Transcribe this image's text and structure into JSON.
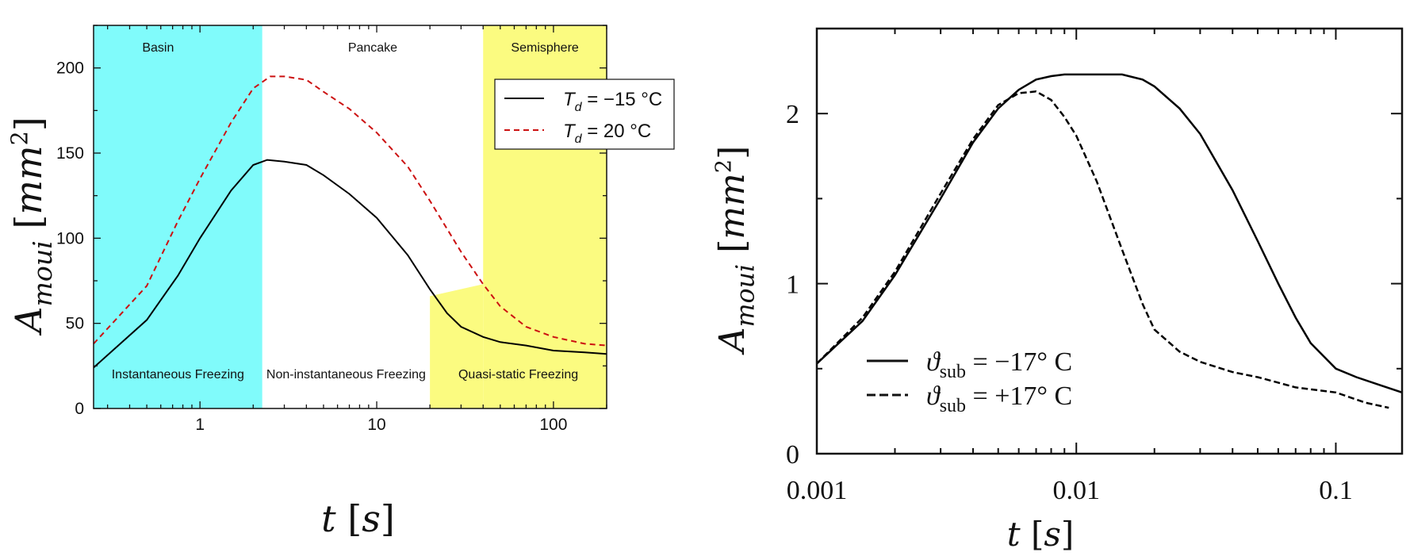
{
  "chart_data": [
    {
      "type": "line",
      "xscale": "log",
      "xlim": [
        0.25,
        200
      ],
      "ylim": [
        0,
        225
      ],
      "xlabel": "t [s]",
      "ylabel": "Amoui [mm2]",
      "xticks": [
        1,
        10,
        100
      ],
      "xtick_labels": [
        "1",
        "10",
        "100"
      ],
      "yticks": [
        0,
        50,
        100,
        150,
        200
      ],
      "ytick_labels": [
        "0",
        "50",
        "100",
        "150",
        "200"
      ],
      "grid": false,
      "legend_position": "top-right",
      "colors": {
        "cyan_region": "#80FBFB",
        "yellow_region": "#FBFB80",
        "dashed_series": "#CC1111",
        "solid_series": "#000000"
      },
      "regions_top": [
        {
          "label": "Basin",
          "x_from": 0.25,
          "x_to": 2.25,
          "color": "#80FBFB"
        },
        {
          "label": "Pancake",
          "x_from": 2.25,
          "x_to": 40,
          "color": "#FFFFFF"
        },
        {
          "label": "Semisphere",
          "x_from": 40,
          "x_to": 200,
          "color": "#FBFB80"
        }
      ],
      "regions_bottom": [
        {
          "label": "Instantaneous Freezing",
          "x_from": 0.25,
          "x_to": 2.25
        },
        {
          "label": "Non-instantaneous Freezing",
          "x_from": 2.25,
          "x_to": 20
        },
        {
          "label": "Quasi-static Freezing",
          "x_from": 20,
          "x_to": 200
        }
      ],
      "series": [
        {
          "legend_symbol": "T",
          "legend_subscript": "d",
          "legend_suffix": " = −15 °C",
          "style": "solid",
          "color": "#000000",
          "x": [
            0.25,
            0.5,
            0.75,
            1,
            1.5,
            2,
            2.4,
            3,
            4,
            5,
            7,
            10,
            15,
            20,
            25,
            30,
            40,
            50,
            70,
            100,
            150,
            200
          ],
          "y": [
            24,
            52,
            78,
            100,
            128,
            143,
            146,
            145,
            143,
            137,
            126,
            112,
            90,
            70,
            56,
            48,
            42,
            39,
            37,
            34,
            33,
            32
          ]
        },
        {
          "legend_symbol": "T",
          "legend_subscript": "d",
          "legend_suffix": " = 20 °C",
          "style": "dashed",
          "color": "#CC1111",
          "x": [
            0.25,
            0.5,
            0.75,
            1,
            1.5,
            2,
            2.5,
            3,
            4,
            5,
            7,
            10,
            15,
            20,
            30,
            40,
            50,
            70,
            100,
            150,
            200
          ],
          "y": [
            38,
            72,
            110,
            135,
            168,
            188,
            195,
            195,
            193,
            186,
            176,
            162,
            142,
            122,
            92,
            73,
            60,
            48,
            42,
            38,
            37
          ]
        }
      ]
    },
    {
      "type": "line",
      "xscale": "log",
      "xlim": [
        0.001,
        0.18
      ],
      "ylim": [
        0,
        2.5
      ],
      "xlabel": "t [s]",
      "ylabel": "Amoui [mm2]",
      "xticks": [
        0.001,
        0.01,
        0.1
      ],
      "xtick_labels": [
        "0.001",
        "0.01",
        "0.1"
      ],
      "yticks": [
        0,
        1,
        2
      ],
      "ytick_labels": [
        "0",
        "1",
        "2"
      ],
      "grid": false,
      "legend_position": "bottom-left",
      "series": [
        {
          "legend_symbol": "ϑ",
          "legend_subscript": "sub",
          "legend_suffix": " = −17° C",
          "style": "solid",
          "color": "#000000",
          "x": [
            0.001,
            0.0015,
            0.002,
            0.003,
            0.004,
            0.005,
            0.006,
            0.007,
            0.008,
            0.009,
            0.01,
            0.012,
            0.015,
            0.018,
            0.02,
            0.025,
            0.03,
            0.04,
            0.05,
            0.06,
            0.07,
            0.08,
            0.1,
            0.12,
            0.15,
            0.18
          ],
          "y": [
            0.53,
            0.78,
            1.05,
            1.5,
            1.83,
            2.03,
            2.14,
            2.2,
            2.22,
            2.23,
            2.23,
            2.23,
            2.23,
            2.2,
            2.16,
            2.03,
            1.88,
            1.55,
            1.25,
            1.0,
            0.8,
            0.65,
            0.5,
            0.45,
            0.4,
            0.36
          ]
        },
        {
          "legend_symbol": "ϑ",
          "legend_subscript": "sub",
          "legend_suffix": " = +17° C",
          "style": "dashed",
          "color": "#000000",
          "x": [
            0.001,
            0.0015,
            0.002,
            0.003,
            0.004,
            0.005,
            0.006,
            0.007,
            0.008,
            0.009,
            0.01,
            0.012,
            0.015,
            0.018,
            0.02,
            0.025,
            0.03,
            0.04,
            0.05,
            0.07,
            0.1,
            0.13,
            0.16
          ],
          "y": [
            0.53,
            0.8,
            1.07,
            1.53,
            1.85,
            2.05,
            2.12,
            2.13,
            2.08,
            1.98,
            1.87,
            1.6,
            1.2,
            0.88,
            0.73,
            0.6,
            0.54,
            0.48,
            0.45,
            0.39,
            0.36,
            0.3,
            0.27
          ]
        }
      ]
    }
  ]
}
